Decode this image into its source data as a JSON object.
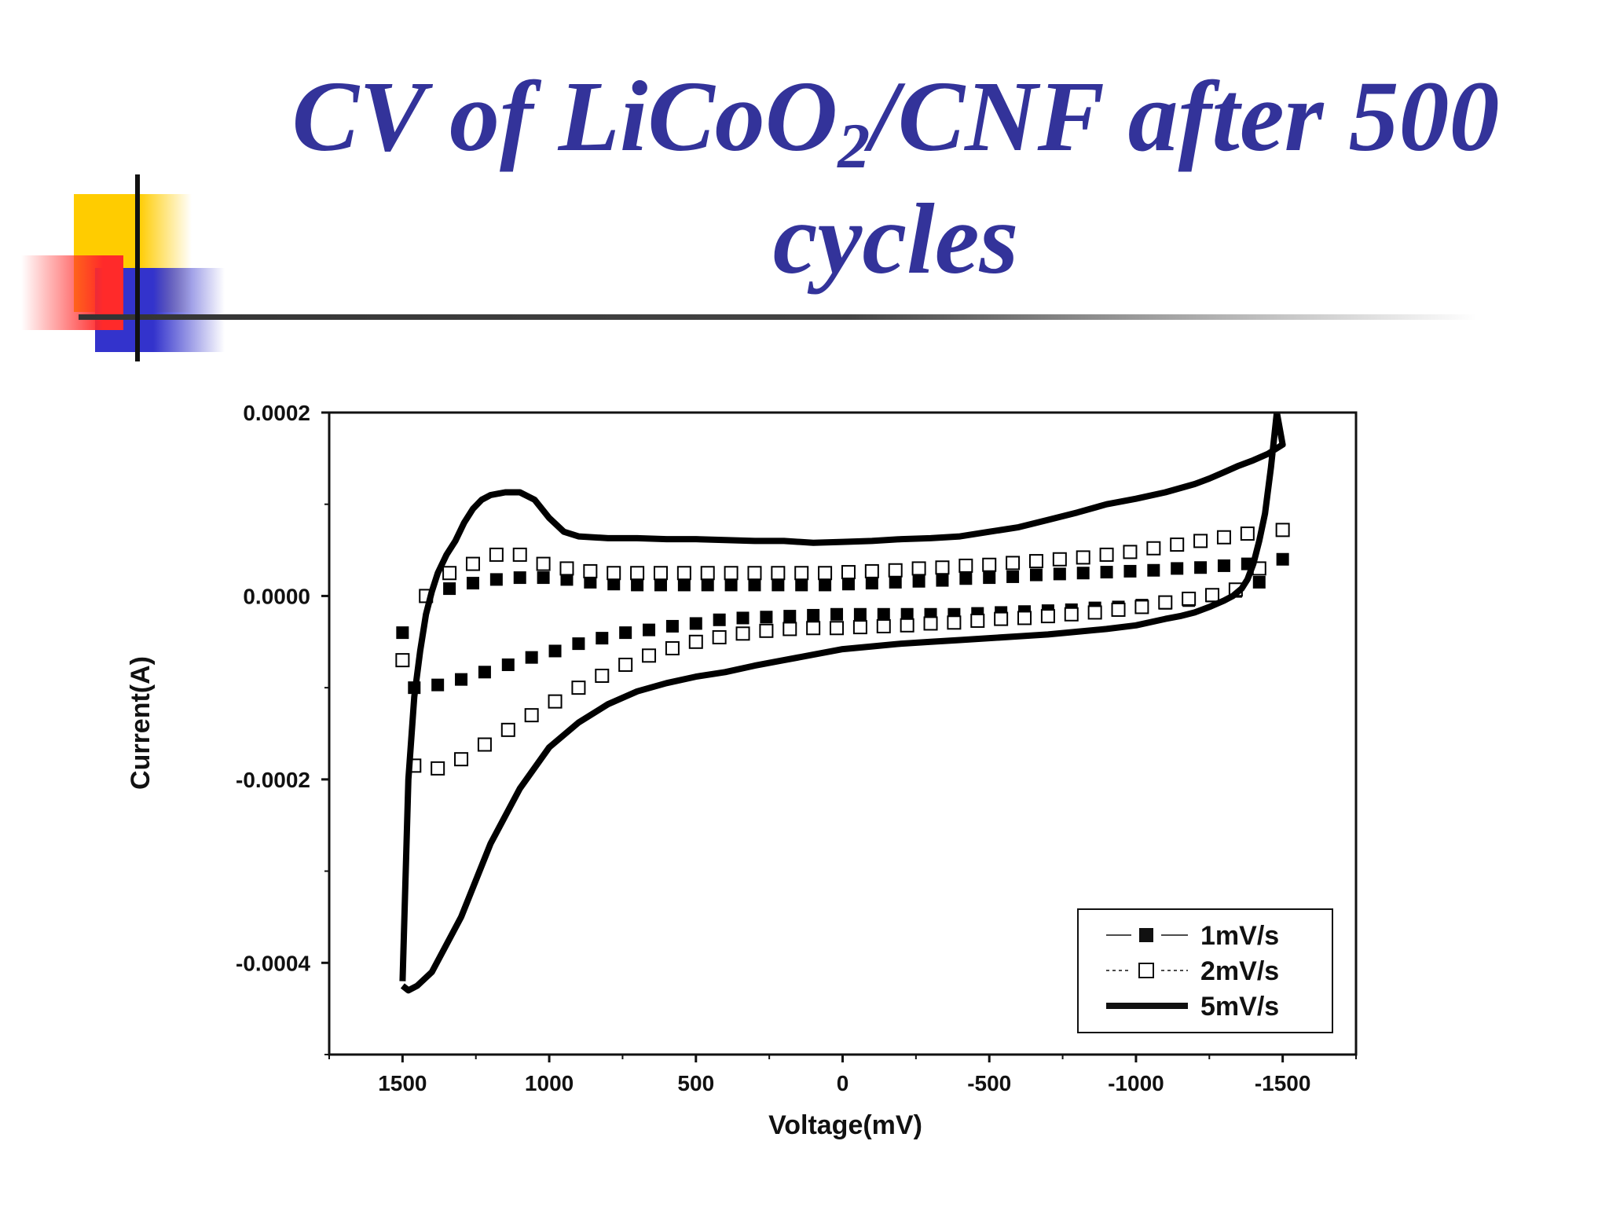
{
  "slide": {
    "title_part1": "CV of LiCoO",
    "title_sub": "2",
    "title_part2": "/CNF after 500",
    "title_line2": "cycles"
  },
  "chart_data": {
    "type": "line",
    "xlabel": "Voltage(mV)",
    "ylabel": "Current(A)",
    "xlim": [
      1750,
      -1750
    ],
    "ylim": [
      -0.0005,
      0.0002
    ],
    "x_ticks": [
      1500,
      1000,
      500,
      0,
      -500,
      -1000,
      -1500
    ],
    "x_tick_labels": [
      "1500",
      "1000",
      "500",
      "0",
      "-500",
      "-1000",
      "-1500"
    ],
    "y_ticks": [
      0.0002,
      0.0,
      -0.0002,
      -0.0004
    ],
    "y_tick_labels": [
      "0.0002",
      "0.0000",
      "-0.0002",
      "-0.0004"
    ],
    "grid": false,
    "legend_position": "bottom-right",
    "series": [
      {
        "name": "1mV/s",
        "marker": "filled-square",
        "line": "solid-thin",
        "color": "#000000",
        "x": [
          1500,
          1420,
          1340,
          1260,
          1180,
          1100,
          1020,
          940,
          860,
          780,
          700,
          620,
          540,
          460,
          380,
          300,
          220,
          140,
          60,
          -20,
          -100,
          -180,
          -260,
          -340,
          -420,
          -500,
          -580,
          -660,
          -740,
          -820,
          -900,
          -980,
          -1060,
          -1140,
          -1220,
          -1300,
          -1380,
          -1500,
          -1420,
          -1340,
          -1260,
          -1180,
          -1100,
          -1020,
          -940,
          -860,
          -780,
          -700,
          -620,
          -540,
          -460,
          -380,
          -300,
          -220,
          -140,
          -60,
          20,
          100,
          180,
          260,
          340,
          420,
          500,
          580,
          660,
          740,
          820,
          900,
          980,
          1060,
          1140,
          1220,
          1300,
          1380,
          1460
        ],
        "y": [
          -4e-05,
          0.0,
          8e-06,
          1.4e-05,
          1.8e-05,
          2e-05,
          2e-05,
          1.8e-05,
          1.5e-05,
          1.3e-05,
          1.2e-05,
          1.2e-05,
          1.2e-05,
          1.2e-05,
          1.2e-05,
          1.2e-05,
          1.2e-05,
          1.2e-05,
          1.2e-05,
          1.3e-05,
          1.4e-05,
          1.5e-05,
          1.6e-05,
          1.7e-05,
          1.9e-05,
          2e-05,
          2.1e-05,
          2.3e-05,
          2.4e-05,
          2.5e-05,
          2.6e-05,
          2.7e-05,
          2.8e-05,
          3e-05,
          3.1e-05,
          3.3e-05,
          3.5e-05,
          4e-05,
          1.5e-05,
          5e-06,
          0.0,
          -5e-06,
          -8e-06,
          -1e-05,
          -1.2e-05,
          -1.3e-05,
          -1.5e-05,
          -1.6e-05,
          -1.7e-05,
          -1.8e-05,
          -1.9e-05,
          -2e-05,
          -2e-05,
          -2e-05,
          -2e-05,
          -2e-05,
          -2e-05,
          -2.1e-05,
          -2.2e-05,
          -2.3e-05,
          -2.4e-05,
          -2.6e-05,
          -3e-05,
          -3.3e-05,
          -3.7e-05,
          -4e-05,
          -4.6e-05,
          -5.2e-05,
          -6e-05,
          -6.7e-05,
          -7.5e-05,
          -8.3e-05,
          -9.1e-05,
          -9.7e-05,
          -0.0001
        ]
      },
      {
        "name": "2mV/s",
        "marker": "open-square",
        "line": "dotted-thin",
        "color": "#000000",
        "x": [
          1500,
          1420,
          1340,
          1260,
          1180,
          1100,
          1020,
          940,
          860,
          780,
          700,
          620,
          540,
          460,
          380,
          300,
          220,
          140,
          60,
          -20,
          -100,
          -180,
          -260,
          -340,
          -420,
          -500,
          -580,
          -660,
          -740,
          -820,
          -900,
          -980,
          -1060,
          -1140,
          -1220,
          -1300,
          -1380,
          -1500,
          -1420,
          -1340,
          -1260,
          -1180,
          -1100,
          -1020,
          -940,
          -860,
          -780,
          -700,
          -620,
          -540,
          -460,
          -380,
          -300,
          -220,
          -140,
          -60,
          20,
          100,
          180,
          260,
          340,
          420,
          500,
          580,
          660,
          740,
          820,
          900,
          980,
          1060,
          1140,
          1220,
          1300,
          1380,
          1460
        ],
        "y": [
          -7e-05,
          0.0,
          2.5e-05,
          3.5e-05,
          4.5e-05,
          4.5e-05,
          3.5e-05,
          3e-05,
          2.7e-05,
          2.5e-05,
          2.5e-05,
          2.5e-05,
          2.5e-05,
          2.5e-05,
          2.5e-05,
          2.5e-05,
          2.5e-05,
          2.5e-05,
          2.5e-05,
          2.6e-05,
          2.7e-05,
          2.8e-05,
          3e-05,
          3.1e-05,
          3.3e-05,
          3.4e-05,
          3.6e-05,
          3.8e-05,
          4e-05,
          4.2e-05,
          4.5e-05,
          4.8e-05,
          5.2e-05,
          5.6e-05,
          6e-05,
          6.4e-05,
          6.8e-05,
          7.2e-05,
          3e-05,
          7e-06,
          1e-06,
          -3e-06,
          -7e-06,
          -1.2e-05,
          -1.5e-05,
          -1.8e-05,
          -2e-05,
          -2.2e-05,
          -2.4e-05,
          -2.5e-05,
          -2.7e-05,
          -2.9e-05,
          -3e-05,
          -3.2e-05,
          -3.3e-05,
          -3.4e-05,
          -3.5e-05,
          -3.5e-05,
          -3.6e-05,
          -3.8e-05,
          -4.1e-05,
          -4.5e-05,
          -5e-05,
          -5.7e-05,
          -6.5e-05,
          -7.5e-05,
          -8.7e-05,
          -0.0001,
          -0.000115,
          -0.00013,
          -0.000146,
          -0.000162,
          -0.000178,
          -0.000188,
          -0.000185
        ]
      },
      {
        "name": "5mV/s",
        "marker": "none",
        "line": "solid-thick",
        "color": "#000000",
        "x": [
          1500,
          1480,
          1460,
          1440,
          1420,
          1400,
          1380,
          1350,
          1320,
          1290,
          1260,
          1230,
          1200,
          1150,
          1100,
          1050,
          1000,
          950,
          900,
          800,
          700,
          600,
          500,
          400,
          300,
          200,
          100,
          0,
          -100,
          -200,
          -300,
          -400,
          -500,
          -600,
          -700,
          -800,
          -900,
          -1000,
          -1100,
          -1200,
          -1250,
          -1300,
          -1350,
          -1400,
          -1450,
          -1500,
          -1480,
          -1460,
          -1440,
          -1420,
          -1400,
          -1380,
          -1360,
          -1330,
          -1300,
          -1250,
          -1200,
          -1150,
          -1100,
          -1000,
          -900,
          -800,
          -700,
          -600,
          -500,
          -400,
          -300,
          -200,
          -100,
          0,
          100,
          200,
          300,
          400,
          500,
          600,
          700,
          800,
          900,
          1000,
          1100,
          1200,
          1300,
          1350,
          1400,
          1450,
          1480,
          1500
        ],
        "y": [
          -0.00042,
          -0.0002,
          -0.00011,
          -6e-05,
          -2e-05,
          5e-06,
          2.5e-05,
          4.5e-05,
          6e-05,
          8e-05,
          9.5e-05,
          0.000105,
          0.00011,
          0.000113,
          0.000113,
          0.000105,
          8.5e-05,
          7e-05,
          6.5e-05,
          6.3e-05,
          6.3e-05,
          6.2e-05,
          6.2e-05,
          6.1e-05,
          6e-05,
          6e-05,
          5.8e-05,
          5.9e-05,
          6e-05,
          6.2e-05,
          6.3e-05,
          6.5e-05,
          7e-05,
          7.5e-05,
          8.3e-05,
          9.1e-05,
          0.0001,
          0.000106,
          0.000113,
          0.000122,
          0.000128,
          0.000135,
          0.000142,
          0.000148,
          0.000155,
          0.000165,
          0.0002,
          0.00014,
          9e-05,
          6e-05,
          3.5e-05,
          1.8e-05,
          8e-06,
          0.0,
          -5e-06,
          -1.2e-05,
          -1.8e-05,
          -2.2e-05,
          -2.5e-05,
          -3.2e-05,
          -3.6e-05,
          -3.9e-05,
          -4.2e-05,
          -4.4e-05,
          -4.6e-05,
          -4.8e-05,
          -5e-05,
          -5.2e-05,
          -5.5e-05,
          -5.8e-05,
          -6.4e-05,
          -7e-05,
          -7.6e-05,
          -8.3e-05,
          -8.8e-05,
          -9.5e-05,
          -0.000104,
          -0.000118,
          -0.000138,
          -0.000165,
          -0.00021,
          -0.00027,
          -0.00035,
          -0.00038,
          -0.00041,
          -0.000425,
          -0.00043,
          -0.000425
        ]
      }
    ]
  }
}
